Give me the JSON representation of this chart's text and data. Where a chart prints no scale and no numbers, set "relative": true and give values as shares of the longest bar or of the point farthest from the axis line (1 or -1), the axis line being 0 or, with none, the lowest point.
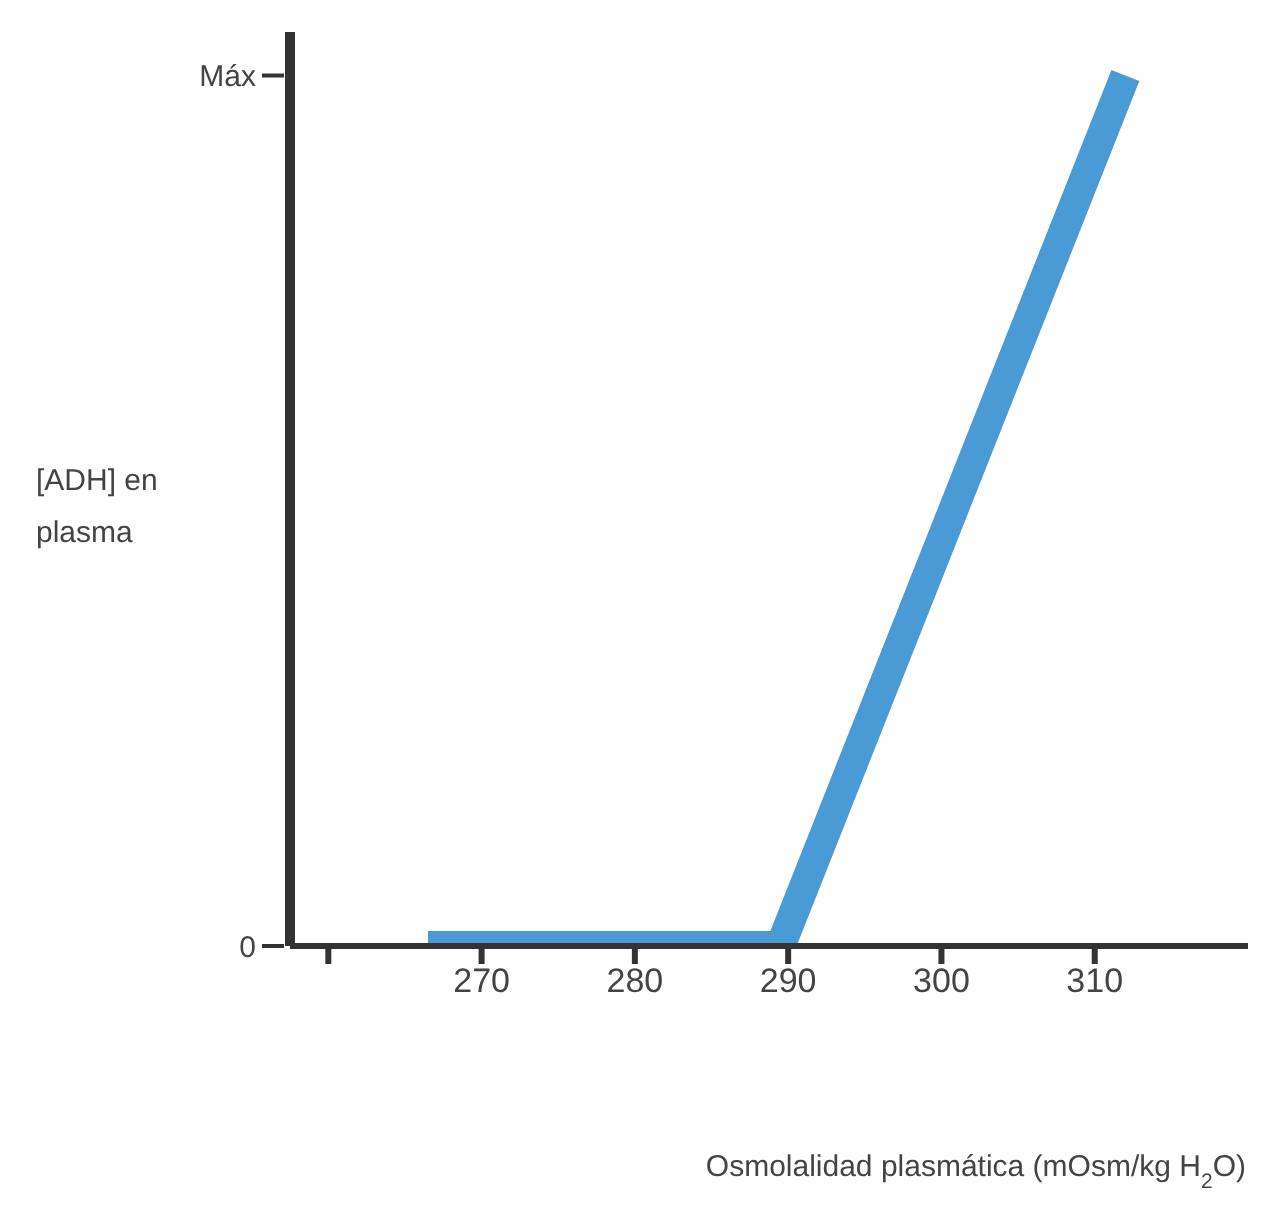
{
  "chart_data": {
    "type": "line",
    "xlabel": "Osmolalidad plasmática (mOsm/kg H$_{2}$O)",
    "ylabel": "[ADH] en plasma",
    "x": [
      266.5,
      289.5,
      312
    ],
    "series": [
      {
        "color": "#4a9ad6",
        "values": [
          0,
          0,
          1
        ]
      }
    ],
    "relative": true,
    "annotations": [
      "0",
      "Máx"
    ],
    "xlim": [
      257.5,
      320
    ],
    "xticks": [
      {
        "value": 260,
        "label": null
      },
      270,
      280,
      290,
      300,
      310
    ],
    "grid": false,
    "legend": false,
    "marker": "none",
    "line_style": "solid"
  }
}
